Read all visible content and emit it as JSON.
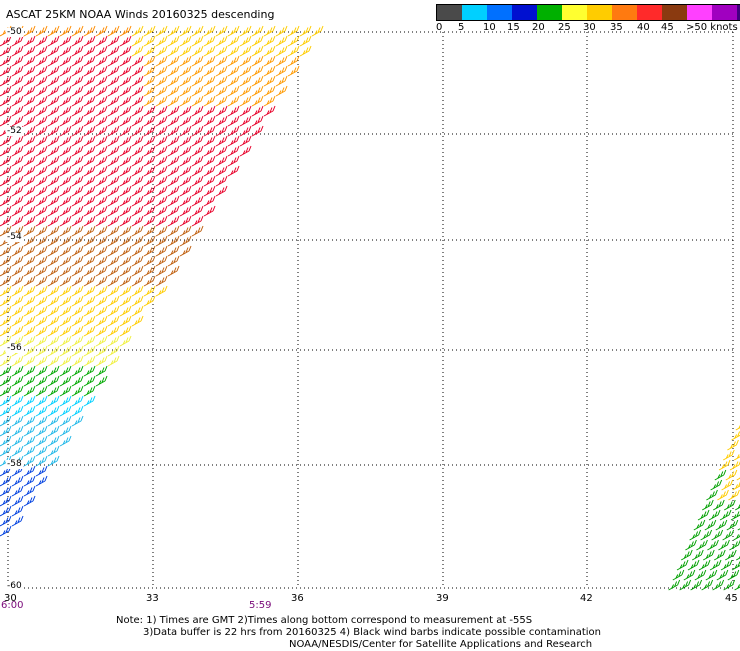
{
  "title": "ASCAT 25KM NOAA Winds 20160325 descending",
  "color_scale": {
    "colors": [
      "#4a4a4a",
      "#00d0ff",
      "#0070ff",
      "#0010d0",
      "#00b000",
      "#ffff30",
      "#ffcc00",
      "#ff7a10",
      "#ff2a2a",
      "#8a3a10",
      "#ff40ff",
      "#a000c0",
      "#400080"
    ],
    "labels": [
      "0",
      "5",
      "10",
      "15",
      "20",
      "25",
      "30",
      "35",
      "40",
      "45",
      ">50 knots"
    ]
  },
  "latitudes": [
    "-50",
    "-52",
    "-54",
    "-56",
    "-58",
    "-60"
  ],
  "longitudes": [
    "30",
    "33",
    "36",
    "39",
    "42",
    "45"
  ],
  "times": [
    "6:00",
    "5:59"
  ],
  "notes": {
    "line1": "Note: 1) Times are GMT 2)Times along bottom correspond to measurement at -55S",
    "line2": "3)Data buffer is 22 hrs from 20160325 4) Black wind barbs indicate possible contamination",
    "line3": "NOAA/NESDIS/Center for Satellite Applications and Research"
  }
}
